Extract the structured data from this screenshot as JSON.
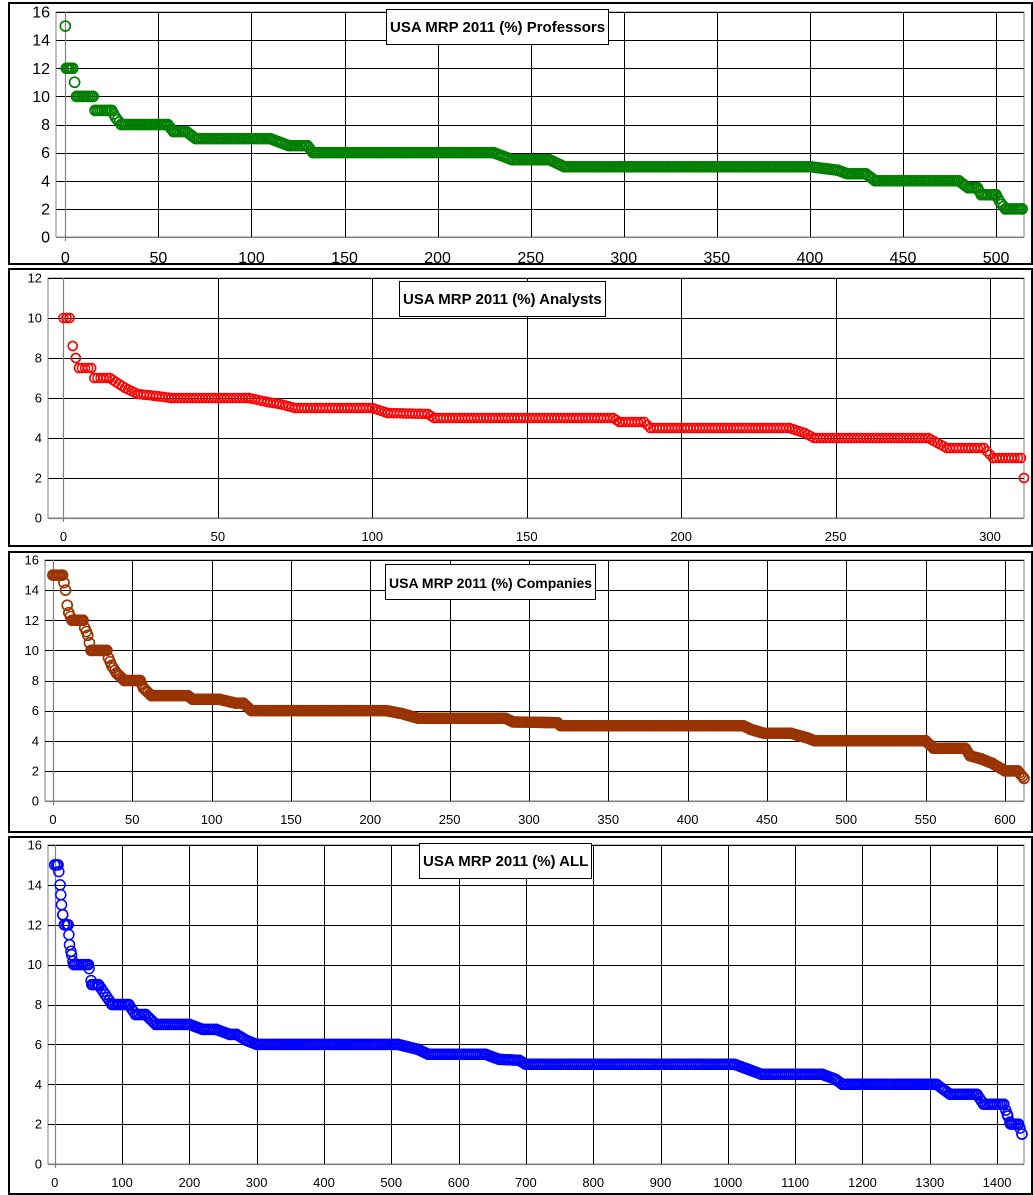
{
  "chart_data": [
    {
      "type": "scatter",
      "title": "USA MRP 2011 (%) Professors",
      "color": "#007f00",
      "n": 514,
      "xlim": [
        -5,
        515
      ],
      "ylim": [
        0,
        16
      ],
      "xticks": [
        0,
        50,
        100,
        150,
        200,
        250,
        300,
        350,
        400,
        450,
        500
      ],
      "yticks": [
        0,
        2,
        4,
        6,
        8,
        10,
        12,
        14,
        16
      ],
      "grid": true,
      "legend": "none",
      "points": [
        [
          0,
          15
        ],
        [
          0.5,
          12
        ],
        [
          1,
          12
        ],
        [
          2,
          12
        ],
        [
          3,
          12
        ],
        [
          4,
          12
        ],
        [
          5,
          11
        ],
        [
          6,
          10
        ],
        [
          10,
          10
        ],
        [
          15,
          10
        ],
        [
          16,
          9
        ],
        [
          25,
          9
        ],
        [
          27,
          8.5
        ],
        [
          30,
          8
        ],
        [
          55,
          8
        ],
        [
          58,
          7.5
        ],
        [
          65,
          7.5
        ],
        [
          70,
          7
        ],
        [
          110,
          7
        ],
        [
          115,
          6.75
        ],
        [
          120,
          6.5
        ],
        [
          130,
          6.5
        ],
        [
          133,
          6
        ],
        [
          230,
          6
        ],
        [
          240,
          5.5
        ],
        [
          260,
          5.5
        ],
        [
          268,
          5
        ],
        [
          400,
          5
        ],
        [
          415,
          4.75
        ],
        [
          420,
          4.5
        ],
        [
          430,
          4.5
        ],
        [
          435,
          4
        ],
        [
          480,
          4
        ],
        [
          485,
          3.5
        ],
        [
          490,
          3.5
        ],
        [
          492,
          3
        ],
        [
          500,
          3
        ],
        [
          502,
          2.5
        ],
        [
          505,
          2
        ],
        [
          514,
          2
        ]
      ]
    },
    {
      "type": "scatter",
      "title": "USA MRP 2011 (%) Analysts",
      "color": "#ff0000",
      "n": 311,
      "xlim": [
        -5,
        311
      ],
      "ylim": [
        0,
        12
      ],
      "xticks": [
        0,
        50,
        100,
        150,
        200,
        250,
        300
      ],
      "yticks": [
        0,
        2,
        4,
        6,
        8,
        10,
        12
      ],
      "grid": true,
      "legend": "none",
      "points": [
        [
          1,
          10
        ],
        [
          2,
          10
        ],
        [
          3,
          8.6
        ],
        [
          4,
          8
        ],
        [
          5,
          7.5
        ],
        [
          9,
          7.5
        ],
        [
          10,
          7
        ],
        [
          15,
          7
        ],
        [
          20,
          6.5
        ],
        [
          24,
          6.2
        ],
        [
          30,
          6.1
        ],
        [
          35,
          6
        ],
        [
          60,
          6
        ],
        [
          66,
          5.8
        ],
        [
          70,
          5.7
        ],
        [
          75,
          5.5
        ],
        [
          100,
          5.5
        ],
        [
          105,
          5.25
        ],
        [
          118,
          5.2
        ],
        [
          120,
          5
        ],
        [
          178,
          5
        ],
        [
          180,
          4.8
        ],
        [
          188,
          4.8
        ],
        [
          190,
          4.5
        ],
        [
          235,
          4.5
        ],
        [
          240,
          4.25
        ],
        [
          243,
          4
        ],
        [
          280,
          4
        ],
        [
          286,
          3.5
        ],
        [
          298,
          3.5
        ],
        [
          301,
          3
        ],
        [
          310,
          3
        ],
        [
          311,
          2
        ]
      ]
    },
    {
      "type": "scatter",
      "title": "USA MRP 2011 (%) Companies",
      "color": "#993300",
      "n": 612,
      "xlim": [
        -5,
        612
      ],
      "ylim": [
        0,
        16
      ],
      "xticks": [
        0,
        50,
        100,
        150,
        200,
        250,
        300,
        350,
        400,
        450,
        500,
        550,
        600
      ],
      "yticks": [
        0,
        2,
        4,
        6,
        8,
        10,
        12,
        14,
        16
      ],
      "grid": true,
      "legend": "none",
      "points": [
        [
          0,
          15
        ],
        [
          6,
          15
        ],
        [
          7,
          14.5
        ],
        [
          8,
          14
        ],
        [
          9,
          13
        ],
        [
          10,
          12.5
        ],
        [
          12,
          12
        ],
        [
          19,
          12
        ],
        [
          20,
          11.5
        ],
        [
          22,
          11
        ],
        [
          23,
          10.5
        ],
        [
          24,
          10
        ],
        [
          34,
          10
        ],
        [
          35,
          9.5
        ],
        [
          37,
          9
        ],
        [
          40,
          8.5
        ],
        [
          45,
          8
        ],
        [
          55,
          8
        ],
        [
          57,
          7.5
        ],
        [
          62,
          7
        ],
        [
          85,
          7
        ],
        [
          88,
          6.75
        ],
        [
          105,
          6.75
        ],
        [
          115,
          6.5
        ],
        [
          120,
          6.5
        ],
        [
          125,
          6
        ],
        [
          210,
          6
        ],
        [
          220,
          5.8
        ],
        [
          230,
          5.5
        ],
        [
          285,
          5.5
        ],
        [
          290,
          5.25
        ],
        [
          318,
          5.2
        ],
        [
          320,
          5
        ],
        [
          435,
          5
        ],
        [
          440,
          4.75
        ],
        [
          448,
          4.5
        ],
        [
          465,
          4.5
        ],
        [
          475,
          4.2
        ],
        [
          480,
          4
        ],
        [
          550,
          4
        ],
        [
          555,
          3.5
        ],
        [
          575,
          3.5
        ],
        [
          578,
          3
        ],
        [
          585,
          2.8
        ],
        [
          592,
          2.5
        ],
        [
          600,
          2
        ],
        [
          608,
          2
        ],
        [
          612,
          1.5
        ]
      ]
    },
    {
      "type": "scatter",
      "title": "USA MRP 2011 (%) ALL",
      "color": "#0000ff",
      "n": 1437,
      "xlim": [
        -10,
        1440
      ],
      "ylim": [
        0,
        16
      ],
      "xticks": [
        0,
        100,
        200,
        300,
        400,
        500,
        600,
        700,
        800,
        900,
        1000,
        1100,
        1200,
        1300,
        1400
      ],
      "yticks": [
        0,
        2,
        4,
        6,
        8,
        10,
        12,
        14,
        16
      ],
      "grid": true,
      "legend": "none",
      "points": [
        [
          0,
          15
        ],
        [
          5,
          15
        ],
        [
          8,
          14
        ],
        [
          10,
          13
        ],
        [
          12,
          12.5
        ],
        [
          14,
          12
        ],
        [
          20,
          12
        ],
        [
          22,
          11
        ],
        [
          25,
          10.5
        ],
        [
          28,
          10
        ],
        [
          50,
          10
        ],
        [
          55,
          9
        ],
        [
          65,
          9
        ],
        [
          75,
          8.5
        ],
        [
          85,
          8
        ],
        [
          110,
          8
        ],
        [
          120,
          7.5
        ],
        [
          135,
          7.5
        ],
        [
          150,
          7
        ],
        [
          200,
          7
        ],
        [
          220,
          6.75
        ],
        [
          240,
          6.75
        ],
        [
          260,
          6.5
        ],
        [
          270,
          6.5
        ],
        [
          285,
          6.2
        ],
        [
          300,
          6
        ],
        [
          510,
          6
        ],
        [
          540,
          5.75
        ],
        [
          555,
          5.5
        ],
        [
          640,
          5.5
        ],
        [
          660,
          5.25
        ],
        [
          690,
          5.2
        ],
        [
          700,
          5
        ],
        [
          1010,
          5
        ],
        [
          1030,
          4.75
        ],
        [
          1050,
          4.5
        ],
        [
          1140,
          4.5
        ],
        [
          1160,
          4.25
        ],
        [
          1170,
          4
        ],
        [
          1310,
          4
        ],
        [
          1330,
          3.5
        ],
        [
          1370,
          3.5
        ],
        [
          1380,
          3
        ],
        [
          1410,
          3
        ],
        [
          1415,
          2.5
        ],
        [
          1420,
          2
        ],
        [
          1432,
          2
        ],
        [
          1437,
          1.5
        ]
      ]
    }
  ]
}
